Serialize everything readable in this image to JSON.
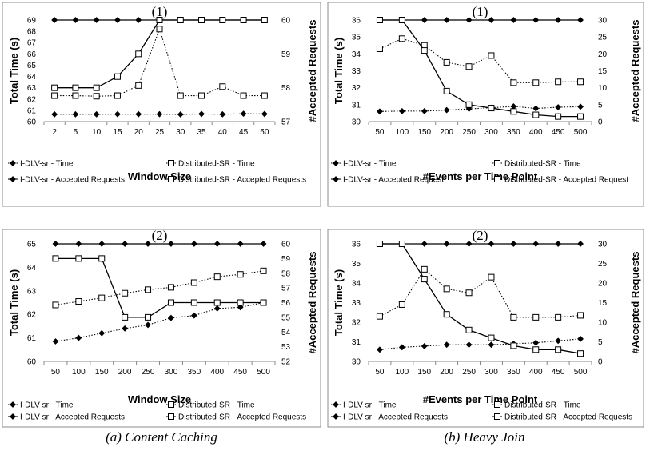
{
  "captions": [
    "(a) Content Caching",
    "(b) Heavy Join"
  ],
  "chart_data": [
    {
      "type": "line",
      "title": "(1)",
      "xlabel": "Window Size",
      "ylabel_left": "Total Time (s)",
      "ylabel_right": "#Accepted Requests",
      "categories": [
        "2",
        "5",
        "10",
        "15",
        "20",
        "25",
        "30",
        "35",
        "40",
        "45",
        "50"
      ],
      "ylim_left": [
        60,
        69
      ],
      "yticks_left": [
        60,
        61,
        62,
        63,
        64,
        65,
        66,
        67,
        68,
        69
      ],
      "ylim_right": [
        57,
        60
      ],
      "yticks_right": [
        57,
        58,
        59,
        60
      ],
      "grid": false,
      "series": [
        {
          "name": "I-DLV-sr - Time",
          "axis": "left",
          "marker": "diamond-filled",
          "dash": "dotted",
          "values": [
            60.65,
            60.65,
            60.65,
            60.66,
            60.66,
            60.66,
            60.64,
            60.68,
            60.65,
            60.7,
            60.68
          ]
        },
        {
          "name": "Distributed-SR - Time",
          "axis": "left",
          "marker": "square-open",
          "dash": "dotted",
          "values": [
            62.3,
            62.3,
            62.25,
            62.3,
            63.2,
            68.2,
            62.3,
            62.3,
            63.1,
            62.3,
            62.3
          ]
        },
        {
          "name": "I-DLV-sr - Accepted Requests",
          "axis": "right",
          "marker": "diamond-filled",
          "dash": "solid",
          "values": [
            60,
            60,
            60,
            60,
            60,
            60,
            60,
            60,
            60,
            60,
            60
          ]
        },
        {
          "name": "Distributed-SR - Accepted Requests",
          "axis": "right",
          "marker": "square-open",
          "dash": "solid",
          "values": [
            58,
            58,
            58,
            58.33,
            59,
            60,
            60,
            60,
            60,
            60,
            60
          ]
        }
      ]
    },
    {
      "type": "line",
      "title": "(1)",
      "xlabel": "#Events per Time Point",
      "ylabel_left": "Total Time (s)",
      "ylabel_right": "#Accepted Requests",
      "categories": [
        "50",
        "100",
        "150",
        "200",
        "250",
        "300",
        "350",
        "400",
        "450",
        "500"
      ],
      "ylim_left": [
        30,
        36
      ],
      "yticks_left": [
        30,
        31,
        32,
        33,
        34,
        35,
        36
      ],
      "ylim_right": [
        0,
        30
      ],
      "yticks_right": [
        0,
        5,
        10,
        15,
        20,
        25,
        30
      ],
      "grid": false,
      "series": [
        {
          "name": "I-DLV-sr - Time",
          "axis": "left",
          "marker": "diamond-filled",
          "dash": "dotted",
          "values": [
            30.6,
            30.62,
            30.62,
            30.68,
            30.75,
            30.82,
            30.9,
            30.78,
            30.85,
            30.88
          ]
        },
        {
          "name": "Distributed-SR - Time",
          "axis": "left",
          "marker": "square-open",
          "dash": "dotted",
          "values": [
            34.3,
            34.9,
            34.5,
            33.5,
            33.25,
            33.9,
            32.3,
            32.3,
            32.35,
            32.35
          ]
        },
        {
          "name": "I-DLV-sr - Accepted Request",
          "axis": "right",
          "marker": "diamond-filled",
          "dash": "solid",
          "values": [
            30,
            30,
            30,
            30,
            30,
            30,
            30,
            30,
            30,
            30
          ]
        },
        {
          "name": "Distributed-SR - Accepted Request",
          "axis": "right",
          "marker": "square-open",
          "dash": "solid",
          "values": [
            30,
            30,
            21,
            9,
            5,
            4,
            3,
            2,
            1.5,
            1.5
          ]
        }
      ]
    },
    {
      "type": "line",
      "title": "(2)",
      "xlabel": "Window Size",
      "ylabel_left": "Total Time (s)",
      "ylabel_right": "#Accepted Requests",
      "categories": [
        "50",
        "100",
        "150",
        "200",
        "250",
        "300",
        "350",
        "400",
        "450",
        "500"
      ],
      "ylim_left": [
        60,
        65
      ],
      "yticks_left": [
        60,
        61,
        62,
        63,
        64,
        65
      ],
      "ylim_right": [
        52,
        60
      ],
      "yticks_right": [
        52,
        53,
        54,
        55,
        56,
        57,
        58,
        59,
        60
      ],
      "grid": false,
      "series": [
        {
          "name": "I-DLV-sr - Time",
          "axis": "left",
          "marker": "diamond-filled",
          "dash": "dotted",
          "values": [
            60.85,
            61,
            61.2,
            61.4,
            61.55,
            61.85,
            61.95,
            62.25,
            62.3,
            62.5
          ]
        },
        {
          "name": "Distributed-SR - Time",
          "axis": "left",
          "marker": "square-open",
          "dash": "dotted",
          "values": [
            62.4,
            62.55,
            62.7,
            62.9,
            63.05,
            63.15,
            63.35,
            63.6,
            63.7,
            63.85
          ]
        },
        {
          "name": "I-DLV-sr - Accepted Requests",
          "axis": "right",
          "marker": "diamond-filled",
          "dash": "solid",
          "values": [
            60,
            60,
            60,
            60,
            60,
            60,
            60,
            60,
            60,
            60
          ]
        },
        {
          "name": "Distributed-SR - Accepted Requests",
          "axis": "right",
          "marker": "square-open",
          "dash": "solid",
          "values": [
            59,
            59,
            59,
            55,
            55,
            56,
            56,
            56,
            56,
            56
          ]
        }
      ]
    },
    {
      "type": "line",
      "title": "(2)",
      "xlabel": "#Events per Time Point",
      "ylabel_left": "Total Time (s)",
      "ylabel_right": "#Accepted Requests",
      "categories": [
        "50",
        "100",
        "150",
        "200",
        "250",
        "300",
        "350",
        "400",
        "450",
        "500"
      ],
      "ylim_left": [
        30,
        36
      ],
      "yticks_left": [
        30,
        31,
        32,
        33,
        34,
        35,
        36
      ],
      "ylim_right": [
        0,
        30
      ],
      "yticks_right": [
        0,
        5,
        10,
        15,
        20,
        25,
        30
      ],
      "grid": false,
      "series": [
        {
          "name": "I-DLV-sr - Time",
          "axis": "left",
          "marker": "diamond-filled",
          "dash": "dotted",
          "values": [
            30.6,
            30.72,
            30.78,
            30.85,
            30.85,
            30.85,
            30.9,
            30.95,
            31.05,
            31.15
          ]
        },
        {
          "name": "Distributed-SR - Time",
          "axis": "left",
          "marker": "square-open",
          "dash": "dotted",
          "values": [
            32.3,
            32.9,
            34.7,
            33.7,
            33.5,
            34.3,
            32.25,
            32.25,
            32.25,
            32.35
          ]
        },
        {
          "name": "I-DLV-sr - Accepted Requests",
          "axis": "right",
          "marker": "diamond-filled",
          "dash": "solid",
          "values": [
            30,
            30,
            30,
            30,
            30,
            30,
            30,
            30,
            30,
            30
          ]
        },
        {
          "name": "Distributed-SR - Accepted Requests",
          "axis": "right",
          "marker": "square-open",
          "dash": "solid",
          "values": [
            30,
            30,
            21,
            12,
            8,
            6,
            4,
            3,
            3,
            2
          ]
        }
      ]
    }
  ]
}
